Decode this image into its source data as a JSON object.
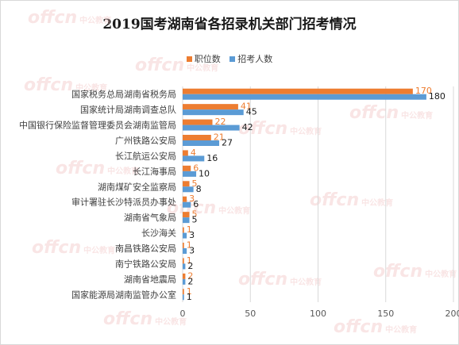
{
  "chart_data": {
    "type": "bar",
    "orientation": "horizontal",
    "title": "2019国考湖南省各招录机关部门招考情况",
    "categories": [
      "国家税务总局湖南省税务局",
      "国家统计局湖南调查总队",
      "中国银行保险监督管理委员会湖南监管局",
      "广州铁路公安局",
      "长江航运公安局",
      "长江海事局",
      "湖南煤矿安全监察局",
      "审计署驻长沙特派员办事处",
      "湖南省气象局",
      "长沙海关",
      "南昌铁路公安局",
      "南宁铁路公安局",
      "湖南省地震局",
      "国家能源局湖南监管办公室"
    ],
    "series": [
      {
        "name": "职位数",
        "color": "#ed7d31",
        "values": [
          170,
          41,
          22,
          21,
          4,
          6,
          5,
          3,
          5,
          1,
          1,
          1,
          2,
          1
        ]
      },
      {
        "name": "招考人数",
        "color": "#5b9bd5",
        "values": [
          180,
          45,
          42,
          27,
          16,
          10,
          8,
          6,
          5,
          3,
          3,
          2,
          2,
          1
        ]
      }
    ],
    "xlim": [
      0,
      200
    ],
    "xticks": [
      "0",
      "50",
      "100",
      "150",
      "200"
    ],
    "legend": "top",
    "grid": true
  },
  "watermark": {
    "logo": "offcn",
    "text": "中公教育"
  }
}
